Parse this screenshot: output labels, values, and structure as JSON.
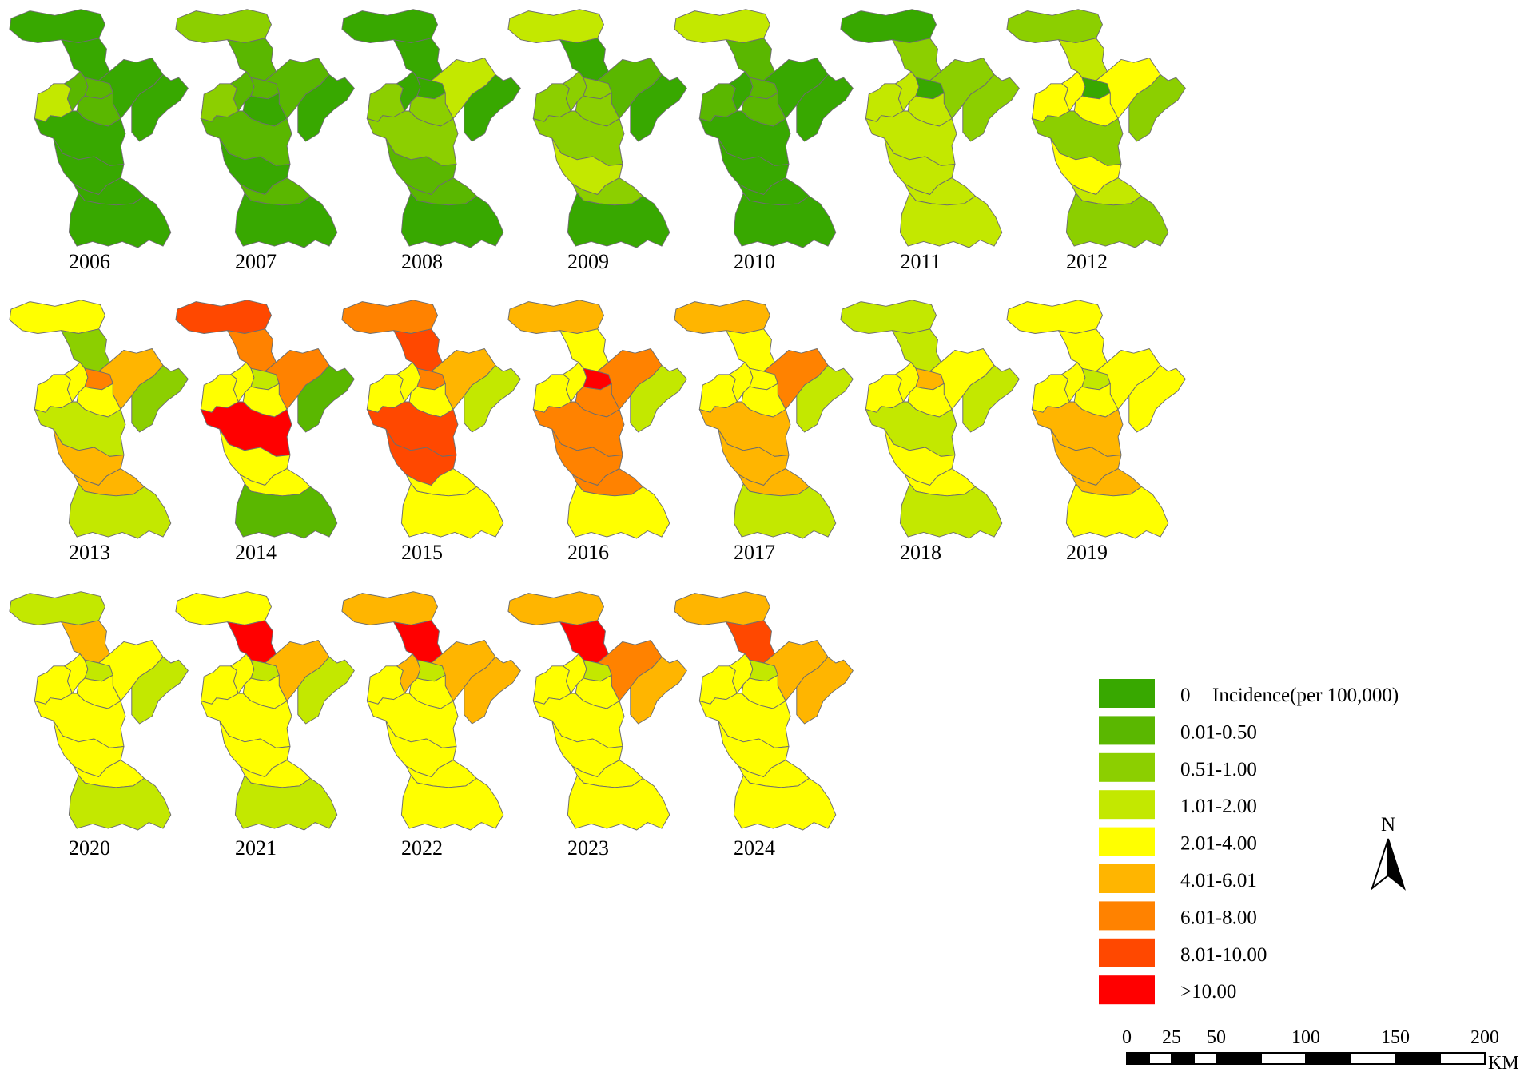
{
  "legend": {
    "title": "Incidence(per 100,000)",
    "classes": [
      {
        "label": "0",
        "color": "#38a800"
      },
      {
        "label": "0.01-0.50",
        "color": "#5ab700"
      },
      {
        "label": "0.51-1.00",
        "color": "#8ccf00"
      },
      {
        "label": "1.01-2.00",
        "color": "#c3e800"
      },
      {
        "label": "2.01-4.00",
        "color": "#ffff00"
      },
      {
        "label": "4.01-6.01",
        "color": "#ffb500"
      },
      {
        "label": "6.01-8.00",
        "color": "#ff8200"
      },
      {
        "label": "8.01-10.00",
        "color": "#ff4800"
      },
      {
        "label": ">10.00",
        "color": "#ff0000"
      }
    ]
  },
  "north_arrow": {
    "label": "N",
    "icon": "north-arrow-icon"
  },
  "scale_bar": {
    "ticks": [
      "0",
      "25",
      "50",
      "100",
      "150",
      "200"
    ],
    "tick_values": [
      0,
      25,
      50,
      100,
      150,
      200
    ],
    "unit": "KM"
  },
  "maps": [
    {
      "year": "2006",
      "classes": [
        0,
        0,
        0,
        3,
        1,
        1,
        1,
        0,
        0,
        0,
        0,
        0
      ]
    },
    {
      "year": "2007",
      "classes": [
        2,
        1,
        1,
        2,
        1,
        1,
        0,
        1,
        0,
        1,
        0,
        0
      ]
    },
    {
      "year": "2008",
      "classes": [
        0,
        0,
        3,
        2,
        0,
        0,
        2,
        2,
        1,
        1,
        0,
        0
      ]
    },
    {
      "year": "2009",
      "classes": [
        3,
        0,
        1,
        2,
        2,
        2,
        2,
        2,
        3,
        2,
        0,
        0
      ]
    },
    {
      "year": "2010",
      "classes": [
        3,
        1,
        0,
        1,
        0,
        1,
        1,
        0,
        0,
        0,
        0,
        0
      ]
    },
    {
      "year": "2011",
      "classes": [
        0,
        2,
        2,
        3,
        3,
        0,
        3,
        3,
        3,
        3,
        3,
        2
      ]
    },
    {
      "year": "2012",
      "classes": [
        2,
        3,
        4,
        4,
        4,
        0,
        4,
        2,
        4,
        3,
        2,
        2
      ]
    },
    {
      "year": "2013",
      "classes": [
        4,
        2,
        5,
        4,
        4,
        6,
        4,
        3,
        5,
        5,
        3,
        2
      ]
    },
    {
      "year": "2014",
      "classes": [
        7,
        6,
        6,
        4,
        4,
        3,
        4,
        8,
        4,
        4,
        1,
        1
      ]
    },
    {
      "year": "2015",
      "classes": [
        6,
        7,
        5,
        4,
        4,
        6,
        4,
        7,
        7,
        4,
        4,
        3
      ]
    },
    {
      "year": "2016",
      "classes": [
        5,
        4,
        6,
        4,
        4,
        8,
        6,
        6,
        6,
        6,
        4,
        3
      ]
    },
    {
      "year": "2017",
      "classes": [
        5,
        4,
        6,
        4,
        4,
        4,
        4,
        5,
        5,
        5,
        3,
        3
      ]
    },
    {
      "year": "2018",
      "classes": [
        3,
        3,
        4,
        4,
        4,
        5,
        4,
        3,
        4,
        4,
        3,
        3
      ]
    },
    {
      "year": "2019",
      "classes": [
        4,
        4,
        4,
        4,
        4,
        3,
        4,
        5,
        5,
        5,
        4,
        4
      ]
    },
    {
      "year": "2020",
      "classes": [
        3,
        5,
        4,
        4,
        4,
        3,
        4,
        4,
        4,
        4,
        3,
        3
      ]
    },
    {
      "year": "2021",
      "classes": [
        4,
        8,
        5,
        4,
        4,
        3,
        4,
        4,
        4,
        4,
        3,
        3
      ]
    },
    {
      "year": "2022",
      "classes": [
        5,
        8,
        5,
        4,
        5,
        3,
        4,
        4,
        4,
        4,
        4,
        5
      ]
    },
    {
      "year": "2023",
      "classes": [
        5,
        8,
        6,
        4,
        4,
        3,
        4,
        4,
        4,
        4,
        4,
        5
      ]
    },
    {
      "year": "2024",
      "classes": [
        5,
        7,
        5,
        4,
        4,
        3,
        4,
        4,
        4,
        4,
        4,
        5
      ]
    }
  ]
}
